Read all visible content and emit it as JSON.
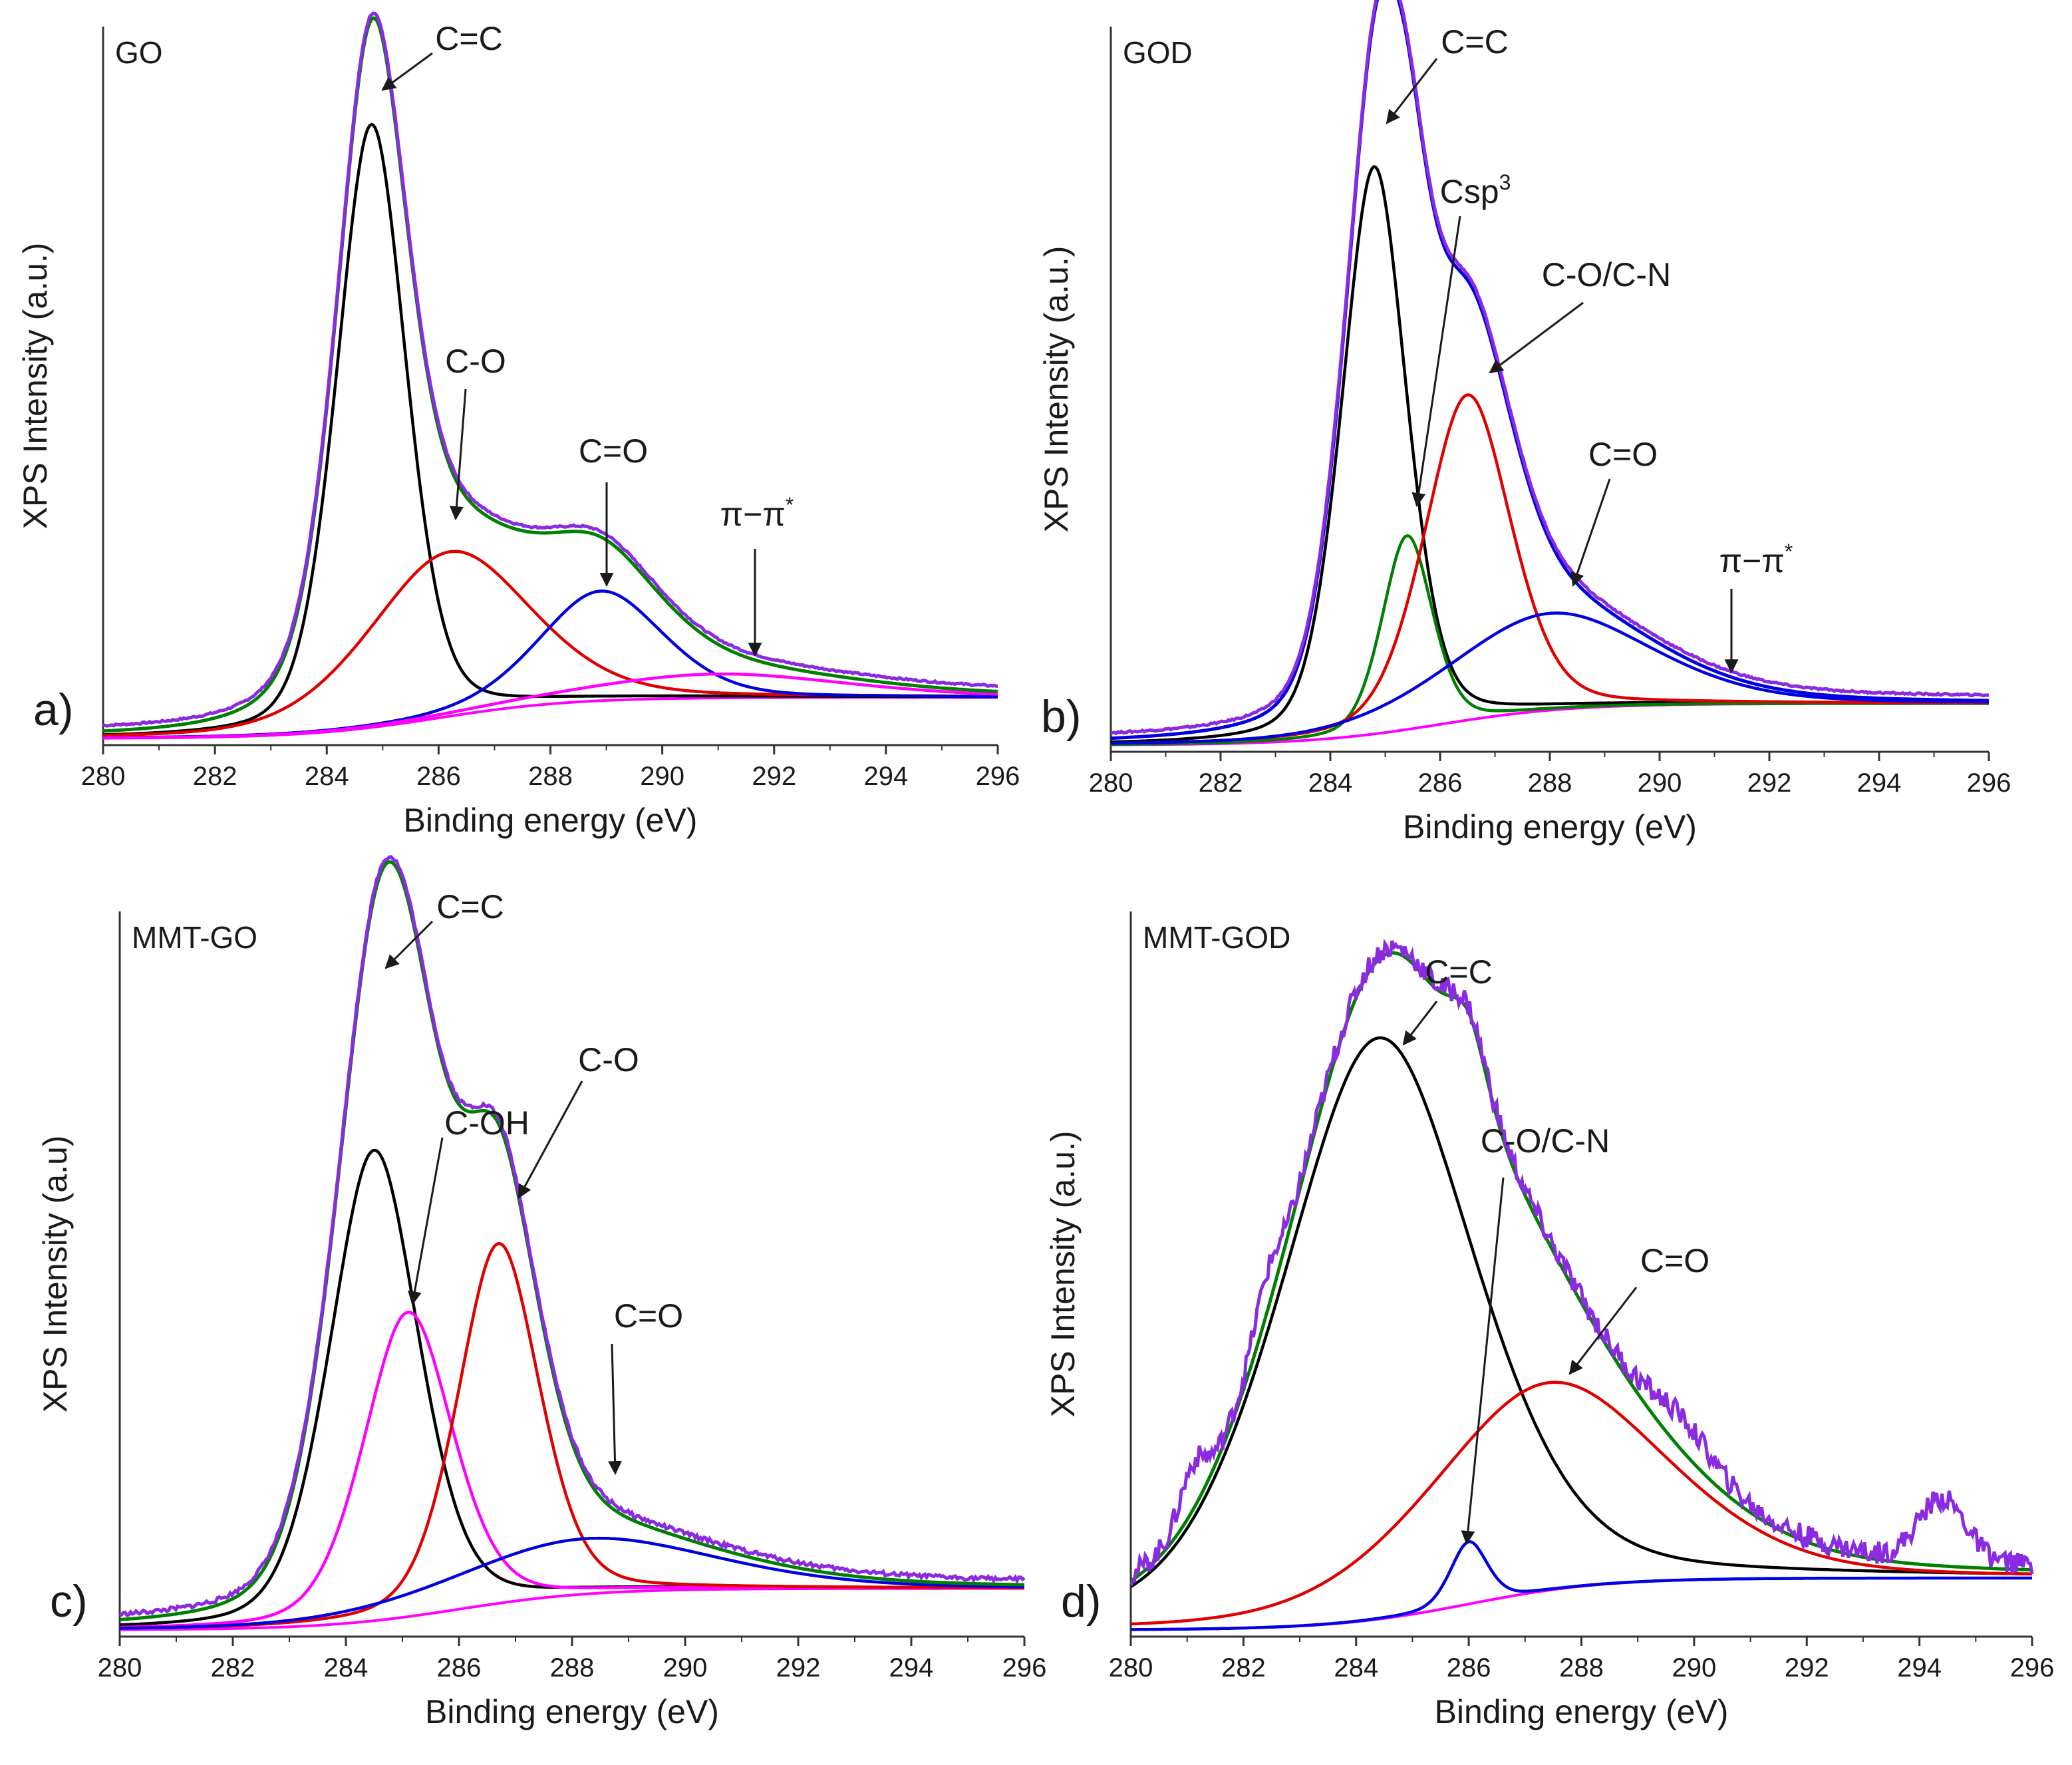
{
  "chart_data": [
    {
      "type": "line",
      "panel": "a)",
      "title": "GO",
      "xlabel": "Binding energy (eV)",
      "ylabel": "XPS Intensity (a.u.)",
      "xlim": [
        280,
        296
      ],
      "ylim": [
        0,
        100
      ],
      "xticks": [
        280,
        282,
        284,
        286,
        288,
        290,
        292,
        294,
        296
      ],
      "components": [
        {
          "name": "C=C",
          "color": "#000000",
          "center": 284.8,
          "height": 88,
          "width": 0.95
        },
        {
          "name": "C-O",
          "color": "#e00000",
          "center": 286.2,
          "height": 24,
          "width": 2.2
        },
        {
          "name": "C=O",
          "color": "#0000e0",
          "center": 288.9,
          "height": 16,
          "width": 1.7
        },
        {
          "name": "π−π*",
          "color": "#ff00ff",
          "center": 291.0,
          "height": 3.5,
          "width": 3.5
        }
      ],
      "background": {
        "color": "#ff00ff",
        "start": 0,
        "end": 6
      },
      "envelope_colors": [
        "#008000",
        "#8a2be2"
      ],
      "annotations": [
        {
          "label": "C=C",
          "x": 284.8
        },
        {
          "label": "C-O",
          "x": 286.3
        },
        {
          "label": "C=O",
          "x": 289.0
        },
        {
          "label": "π−π*",
          "x": 291.8
        }
      ]
    },
    {
      "type": "line",
      "panel": "b)",
      "title": "GOD",
      "xlabel": "Binding energy (eV)",
      "ylabel": "XPS Intensity (a.u.)",
      "xlim": [
        280,
        296
      ],
      "ylim": [
        0,
        100
      ],
      "xticks": [
        280,
        282,
        284,
        286,
        288,
        290,
        292,
        294,
        296
      ],
      "components": [
        {
          "name": "C=C",
          "color": "#000000",
          "center": 284.8,
          "height": 82,
          "width": 0.9
        },
        {
          "name": "Csp3",
          "color": "#008000",
          "center": 285.4,
          "height": 28,
          "width": 0.7
        },
        {
          "name": "C-O/C-N",
          "color": "#e00000",
          "center": 286.5,
          "height": 47,
          "width": 1.2
        },
        {
          "name": "C=O",
          "color": "#0000e0",
          "center": 288.0,
          "height": 14,
          "width": 2.8
        }
      ],
      "background": {
        "color": "#ff00ff",
        "start": 0,
        "end": 6
      },
      "envelope_colors": [
        "#0000e0",
        "#8a2be2"
      ],
      "annotations": [
        {
          "label": "C=C",
          "x": 284.8
        },
        {
          "label": "Csp3",
          "x": 285.4
        },
        {
          "label": "C-O/C-N",
          "x": 286.6
        },
        {
          "label": "C=O",
          "x": 288.3
        },
        {
          "label": "π−π*",
          "x": 291.3
        }
      ]
    },
    {
      "type": "line",
      "panel": "c)",
      "title": "MMT-GO",
      "xlabel": "Binding energy (eV)",
      "ylabel": "XPS Intensity (a.u)",
      "xlim": [
        280,
        296
      ],
      "ylim": [
        0,
        100
      ],
      "xticks": [
        280,
        282,
        284,
        286,
        288,
        290,
        292,
        294,
        296
      ],
      "components": [
        {
          "name": "C=C",
          "color": "#000000",
          "center": 284.5,
          "height": 68,
          "width": 1.2
        },
        {
          "name": "C-OH",
          "color": "#ff00ff",
          "center": 285.1,
          "height": 44,
          "width": 1.2
        },
        {
          "name": "C-O",
          "color": "#e00000",
          "center": 286.7,
          "height": 52,
          "width": 1.1
        },
        {
          "name": "C=O",
          "color": "#0000e0",
          "center": 288.2,
          "height": 8,
          "width": 3.5
        }
      ],
      "background": {
        "color": "#ff00ff",
        "start": 0,
        "end": 6
      },
      "envelope_colors": [
        "#008000",
        "#8a2be2"
      ],
      "annotations": [
        {
          "label": "C=C",
          "x": 284.7
        },
        {
          "label": "C-OH",
          "x": 285.3
        },
        {
          "label": "C-O",
          "x": 286.8
        },
        {
          "label": "C=O",
          "x": 288.9
        }
      ]
    },
    {
      "type": "line",
      "panel": "d)",
      "title": "MMT-GOD",
      "xlabel": "Binding energy (eV)",
      "ylabel": "XPS Intensity (a.u.)",
      "xlim": [
        280,
        296
      ],
      "ylim": [
        0,
        100
      ],
      "xticks": [
        280,
        282,
        284,
        286,
        288,
        290,
        292,
        294,
        296
      ],
      "components": [
        {
          "name": "C=C",
          "color": "#000000",
          "center": 284.4,
          "height": 84,
          "width": 2.6
        },
        {
          "name": "C-O/C-N",
          "color": "#0000e0",
          "center": 286.0,
          "height": 9,
          "width": 0.5
        },
        {
          "name": "C=O",
          "color": "#e00000",
          "center": 287.4,
          "height": 30,
          "width": 3.2
        }
      ],
      "background": {
        "color": "#ff00ff",
        "start": 0,
        "end": 7.5
      },
      "envelope_colors": [
        "#008000",
        "#8a2be2"
      ],
      "annotations": [
        {
          "label": "C=C",
          "x": 284.5
        },
        {
          "label": "C-O/C-N",
          "x": 286.0
        },
        {
          "label": "C=O",
          "x": 287.8
        }
      ]
    }
  ]
}
